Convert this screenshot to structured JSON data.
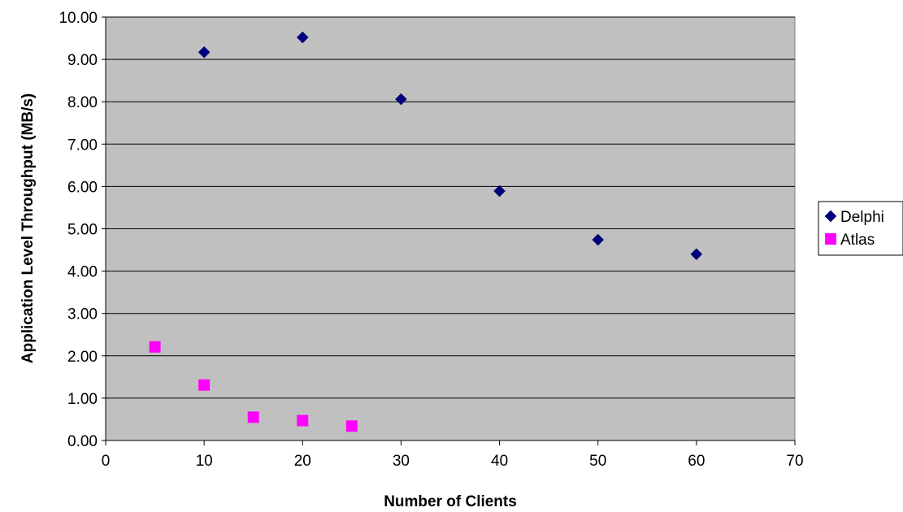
{
  "chart_data": {
    "type": "scatter",
    "xlabel": "Number of Clients",
    "ylabel": "Application Level Throughput (MB/s)",
    "xlim": [
      0,
      70
    ],
    "ylim": [
      0,
      10
    ],
    "x_ticks": [
      "0",
      "10",
      "20",
      "30",
      "40",
      "50",
      "60",
      "70"
    ],
    "y_ticks": [
      "0.00",
      "1.00",
      "2.00",
      "3.00",
      "4.00",
      "5.00",
      "6.00",
      "7.00",
      "8.00",
      "9.00",
      "10.00"
    ],
    "grid": true,
    "legend_position": "right",
    "plot_background": "#c0c0c0",
    "series": [
      {
        "name": "Delphi",
        "marker": "diamond",
        "color": "#000080",
        "points": [
          {
            "x": 10,
            "y": 9.17
          },
          {
            "x": 20,
            "y": 9.52
          },
          {
            "x": 30,
            "y": 8.06
          },
          {
            "x": 40,
            "y": 5.89
          },
          {
            "x": 50,
            "y": 4.74
          },
          {
            "x": 60,
            "y": 4.4
          }
        ]
      },
      {
        "name": "Atlas",
        "marker": "square",
        "color": "#ff00ff",
        "points": [
          {
            "x": 5,
            "y": 2.21
          },
          {
            "x": 10,
            "y": 1.31
          },
          {
            "x": 15,
            "y": 0.55
          },
          {
            "x": 20,
            "y": 0.47
          },
          {
            "x": 25,
            "y": 0.34
          }
        ]
      }
    ]
  }
}
